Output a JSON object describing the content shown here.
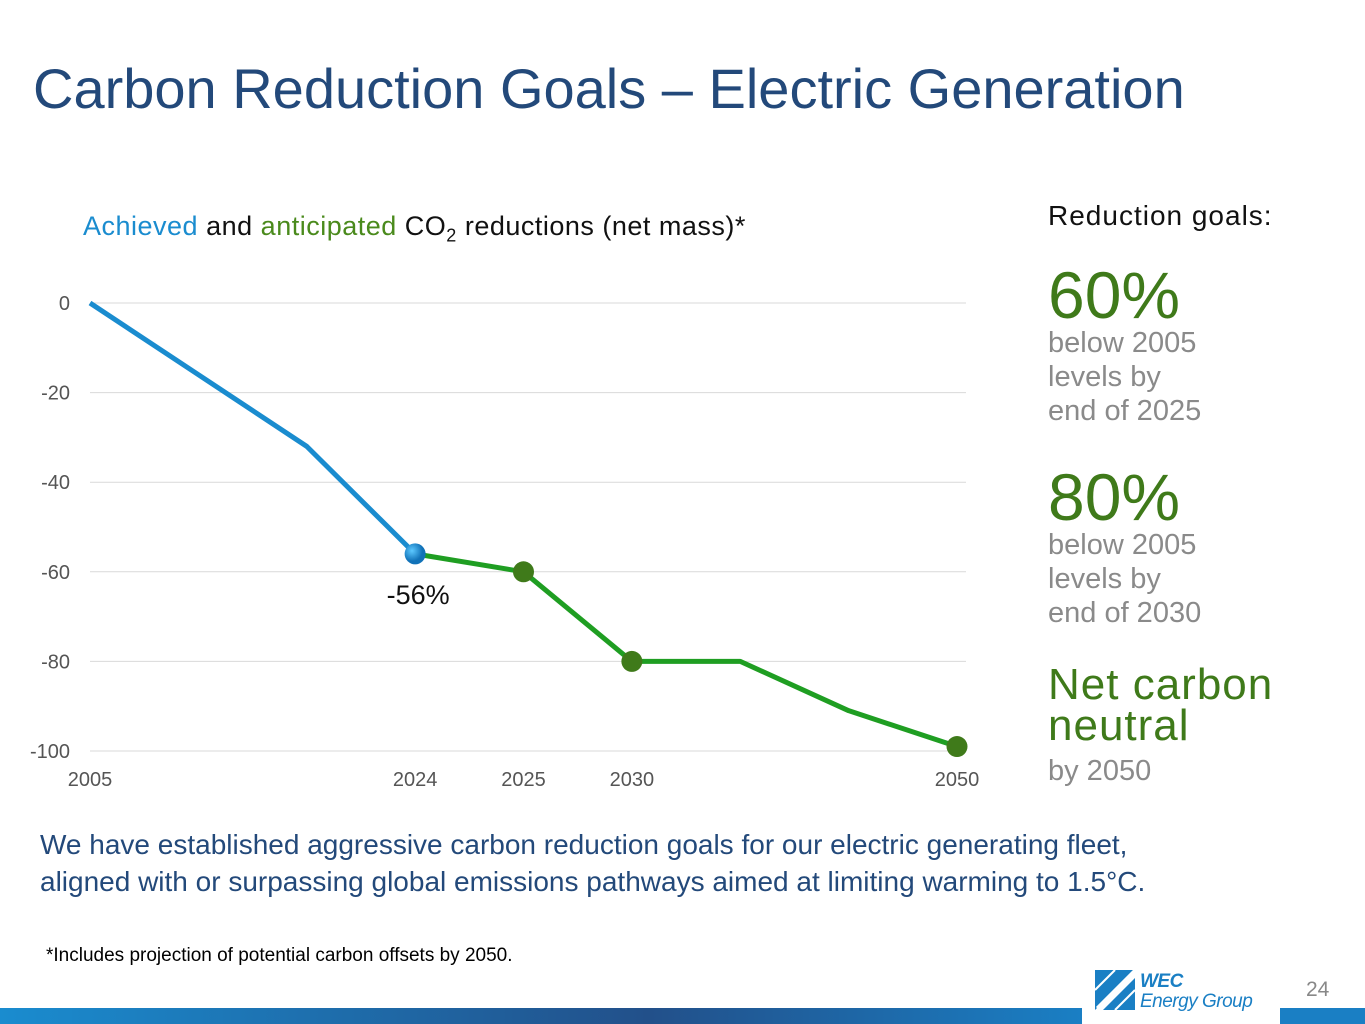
{
  "slide": {
    "title": "Carbon Reduction Goals – Electric Generation",
    "body": [
      "We have established aggressive carbon reduction goals for our electric generating fleet,",
      "aligned with or surpassing global emissions pathways aimed at limiting warming to 1.5°C."
    ],
    "footnote": "*Includes projection of potential carbon offsets by 2050.",
    "logo": [
      "WEC",
      "Energy Group"
    ],
    "page_number": "24"
  },
  "goals": {
    "heading": "Reduction goals:",
    "items": [
      {
        "headline": [
          "60%"
        ],
        "text": [
          "below 2005",
          "levels by",
          "end of 2025"
        ]
      },
      {
        "headline": [
          "80%"
        ],
        "text": [
          "below 2005",
          "levels by",
          "end of 2030"
        ]
      },
      {
        "headline": [
          "Net carbon",
          "neutral"
        ],
        "text": [
          "by 2050"
        ]
      }
    ]
  },
  "chart_data": {
    "type": "line",
    "title": {
      "connector": "and",
      "subject": "CO",
      "subscript": "2",
      "rest": "reductions (net mass)*"
    },
    "categories": [
      "2005",
      null,
      null,
      "2024",
      "2025",
      "2030",
      null,
      null,
      "2050"
    ],
    "series": [
      {
        "name": "Achieved",
        "color": "#1a8ccf",
        "values": [
          0,
          -16,
          -32,
          -56,
          null,
          null,
          null,
          null,
          null
        ],
        "marker_indices": [
          3
        ],
        "value_labels": [
          null,
          null,
          null,
          "-56%",
          null,
          null,
          null,
          null,
          null
        ]
      },
      {
        "name": "anticipated",
        "color": "#1f9e22",
        "marker_color": "#3f7a1a",
        "values": [
          null,
          null,
          null,
          -56,
          -60,
          -80,
          -80,
          -91,
          -99
        ],
        "marker_indices": [
          4,
          5,
          8
        ]
      }
    ],
    "ylim": [
      -100,
      0
    ],
    "yticks": [
      0,
      -20,
      -40,
      -60,
      -80,
      -100
    ],
    "grid": true
  }
}
